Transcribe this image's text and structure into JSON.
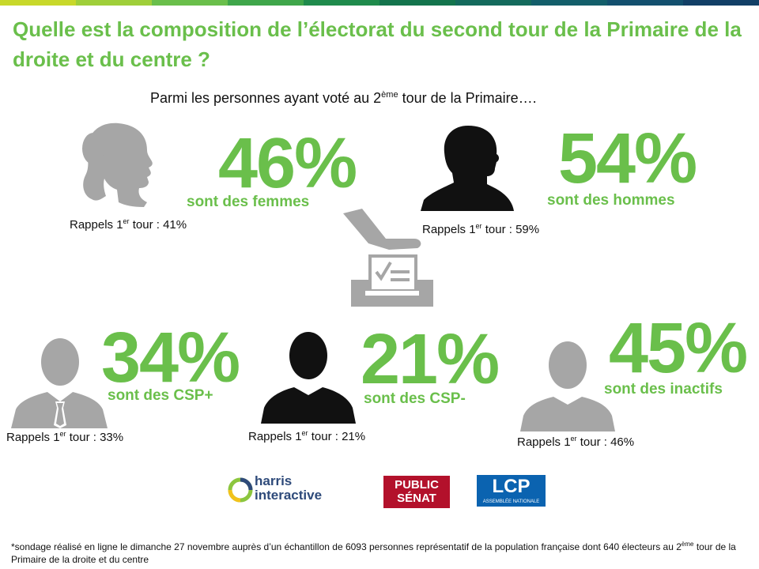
{
  "topbar_colors": [
    "#c8d82a",
    "#9fcf3a",
    "#6abf4b",
    "#3fa64a",
    "#1f8b4c",
    "#14744d",
    "#146a5c",
    "#135e6a",
    "#13506e",
    "#123f66"
  ],
  "accent": "#6abf4b",
  "title": "Quelle est la composition de l’électorat du second tour de la Primaire de la droite et du centre ?",
  "subtitle": {
    "before": "Parmi les personnes ayant voté au 2",
    "sup": "ème",
    "after": " tour de la Primaire…."
  },
  "stats": {
    "femmes": {
      "value": "46%",
      "caption": "sont des femmes",
      "rappel_pre": "Rappels 1",
      "rappel_sup": "er",
      "rappel_post": " tour : 41%"
    },
    "hommes": {
      "value": "54%",
      "caption": "sont des hommes",
      "rappel_pre": "Rappels 1",
      "rappel_sup": "er",
      "rappel_post": " tour : 59%"
    },
    "csp_plus": {
      "value": "34%",
      "caption": "sont des CSP+",
      "rappel_pre": "Rappels 1",
      "rappel_sup": "er",
      "rappel_post": " tour : 33%"
    },
    "csp_minus": {
      "value": "21%",
      "caption": "sont des CSP-",
      "rappel_pre": "Rappels 1",
      "rappel_sup": "er",
      "rappel_post": " tour : 21%"
    },
    "inactifs": {
      "value": "45%",
      "caption": "sont des inactifs",
      "rappel_pre": "Rappels 1",
      "rappel_sup": "er",
      "rappel_post": " tour : 46%"
    }
  },
  "logos": {
    "harris_line1": "harris",
    "harris_line2": "interactive",
    "ps_line1": "PUBLIC",
    "ps_line2": "SÉNAT",
    "lcp": "LCP",
    "lcp_sub": "ASSEMBLÉE NATIONALE"
  },
  "footnote": {
    "before": "*sondage réalisé en ligne le dimanche 27 novembre auprès d’un échantillon de 6093 personnes représentatif de la population française dont 640 électeurs au 2",
    "sup": "ème",
    "after": " tour de la Primaire de la droite et du centre"
  }
}
